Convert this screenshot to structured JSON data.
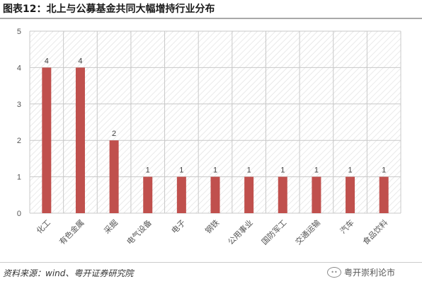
{
  "header": {
    "title": "图表12：北上与公募基金共同大幅增持行业分布"
  },
  "footer": {
    "source": "资料来源：wind、粤开证券研究院",
    "watermark": "粤开崇利论市",
    "watermark_icon": "wechat-logo"
  },
  "colors": {
    "bar": "#c0504d",
    "hatch": "#d9d9d9",
    "axis": "#bfbfbf"
  },
  "chart_data": {
    "type": "bar",
    "title": "",
    "xlabel": "",
    "ylabel": "",
    "ylim": [
      0,
      5
    ],
    "yticks": [
      0,
      1,
      2,
      3,
      4,
      5
    ],
    "grid": true,
    "legend": "none",
    "categories": [
      "化工",
      "有色金属",
      "采掘",
      "电气设备",
      "电子",
      "钢铁",
      "公用事业",
      "国防军工",
      "交通运输",
      "汽车",
      "食品饮料"
    ],
    "values": [
      4,
      4,
      2,
      1,
      1,
      1,
      1,
      1,
      1,
      1,
      1
    ],
    "data_labels": [
      "4",
      "4",
      "2",
      "1",
      "1",
      "1",
      "1",
      "1",
      "1",
      "1",
      "1"
    ]
  }
}
